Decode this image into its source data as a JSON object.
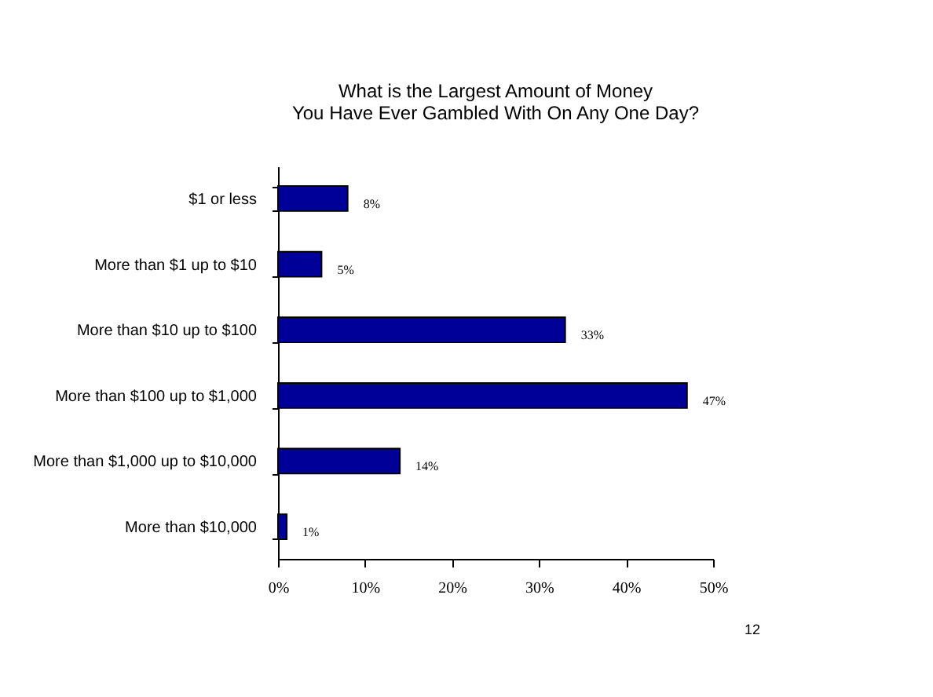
{
  "chart_data": {
    "type": "bar",
    "orientation": "horizontal",
    "title": "What is the Largest Amount of Money\nYou Have Ever Gambled With On Any One Day?",
    "categories": [
      "$1 or less",
      "More than $1 up to $10",
      "More than $10 up to $100",
      "More than $100 up to $1,000",
      "More than $1,000 up to $10,000",
      "More than $10,000"
    ],
    "values": [
      8,
      5,
      33,
      47,
      14,
      1
    ],
    "value_labels": [
      "8%",
      "5%",
      "33%",
      "47%",
      "14%",
      "1%"
    ],
    "color": "#000099",
    "xlim": [
      0,
      50
    ],
    "xticks": [
      {
        "value": 0,
        "label": "0%"
      },
      {
        "value": 10,
        "label": "10%"
      },
      {
        "value": 20,
        "label": "20%"
      },
      {
        "value": 30,
        "label": "30%"
      },
      {
        "value": 40,
        "label": "40%"
      },
      {
        "value": 50,
        "label": "50%"
      }
    ],
    "grid": false,
    "annotations": [
      "12"
    ]
  }
}
